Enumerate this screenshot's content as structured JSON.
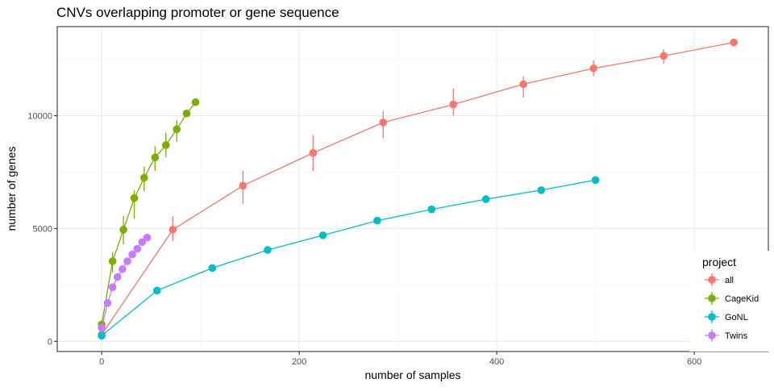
{
  "chart_data": {
    "type": "line",
    "title": "CNVs overlapping promoter or gene sequence",
    "xlabel": "number of samples",
    "ylabel": "number of genes",
    "xlim": [
      -45,
      675
    ],
    "ylim": [
      -450,
      13950
    ],
    "xticks": [
      0,
      200,
      400,
      600
    ],
    "yticks": [
      0,
      5000,
      10000
    ],
    "grid": true,
    "legend_position": "right",
    "legend_title": "project",
    "series": [
      {
        "name": "all",
        "color": "#F8766D",
        "points": [
          {
            "x": 0,
            "y": 300,
            "lo": 250,
            "hi": 350
          },
          {
            "x": 72,
            "y": 4950,
            "lo": 4450,
            "hi": 5550
          },
          {
            "x": 143,
            "y": 6900,
            "lo": 6100,
            "hi": 7550
          },
          {
            "x": 214,
            "y": 8350,
            "lo": 7550,
            "hi": 9150
          },
          {
            "x": 285,
            "y": 9700,
            "lo": 9000,
            "hi": 10200
          },
          {
            "x": 356,
            "y": 10500,
            "lo": 10000,
            "hi": 11200
          },
          {
            "x": 427,
            "y": 11400,
            "lo": 10800,
            "hi": 11750
          },
          {
            "x": 498,
            "y": 12100,
            "lo": 11750,
            "hi": 12450
          },
          {
            "x": 569,
            "y": 12650,
            "lo": 12300,
            "hi": 12950
          },
          {
            "x": 640,
            "y": 13250,
            "lo": 13250,
            "hi": 13250
          }
        ]
      },
      {
        "name": "CageKid",
        "color": "#7CAE00",
        "points": [
          {
            "x": 0,
            "y": 750,
            "lo": 650,
            "hi": 850
          },
          {
            "x": 11,
            "y": 3550,
            "lo": 3050,
            "hi": 3950
          },
          {
            "x": 22,
            "y": 4950,
            "lo": 4300,
            "hi": 5550
          },
          {
            "x": 33,
            "y": 6350,
            "lo": 5450,
            "hi": 6700
          },
          {
            "x": 43,
            "y": 7250,
            "lo": 6650,
            "hi": 7750
          },
          {
            "x": 54,
            "y": 8150,
            "lo": 7550,
            "hi": 8650
          },
          {
            "x": 65,
            "y": 8700,
            "lo": 8150,
            "hi": 9250
          },
          {
            "x": 76,
            "y": 9400,
            "lo": 8850,
            "hi": 9800
          },
          {
            "x": 86,
            "y": 10100,
            "lo": 10100,
            "hi": 10100
          },
          {
            "x": 95,
            "y": 10600,
            "lo": 10600,
            "hi": 10600
          }
        ]
      },
      {
        "name": "GoNL",
        "color": "#00BFC4",
        "points": [
          {
            "x": 0,
            "y": 250,
            "lo": 250,
            "hi": 250
          },
          {
            "x": 56,
            "y": 2250,
            "lo": 2250,
            "hi": 2250
          },
          {
            "x": 112,
            "y": 3250,
            "lo": 3250,
            "hi": 3250
          },
          {
            "x": 168,
            "y": 4050,
            "lo": 4050,
            "hi": 4050
          },
          {
            "x": 224,
            "y": 4700,
            "lo": 4700,
            "hi": 4700
          },
          {
            "x": 279,
            "y": 5350,
            "lo": 5350,
            "hi": 5350
          },
          {
            "x": 334,
            "y": 5850,
            "lo": 5850,
            "hi": 5850
          },
          {
            "x": 389,
            "y": 6300,
            "lo": 6300,
            "hi": 6300
          },
          {
            "x": 445,
            "y": 6700,
            "lo": 6700,
            "hi": 6700
          },
          {
            "x": 500,
            "y": 7150,
            "lo": 7150,
            "hi": 7150
          }
        ]
      },
      {
        "name": "Twins",
        "color": "#C77CFF",
        "points": [
          {
            "x": 0,
            "y": 600,
            "lo": 600,
            "hi": 600
          },
          {
            "x": 6,
            "y": 1700,
            "lo": 1700,
            "hi": 1700
          },
          {
            "x": 11,
            "y": 2400,
            "lo": 2400,
            "hi": 2400
          },
          {
            "x": 16,
            "y": 2850,
            "lo": 2850,
            "hi": 2850
          },
          {
            "x": 21,
            "y": 3200,
            "lo": 3200,
            "hi": 3200
          },
          {
            "x": 26,
            "y": 3550,
            "lo": 3550,
            "hi": 3550
          },
          {
            "x": 31,
            "y": 3850,
            "lo": 3850,
            "hi": 3850
          },
          {
            "x": 36,
            "y": 4100,
            "lo": 4100,
            "hi": 4100
          },
          {
            "x": 41,
            "y": 4400,
            "lo": 4400,
            "hi": 4400
          },
          {
            "x": 46,
            "y": 4600,
            "lo": 4600,
            "hi": 4600
          }
        ]
      }
    ]
  }
}
